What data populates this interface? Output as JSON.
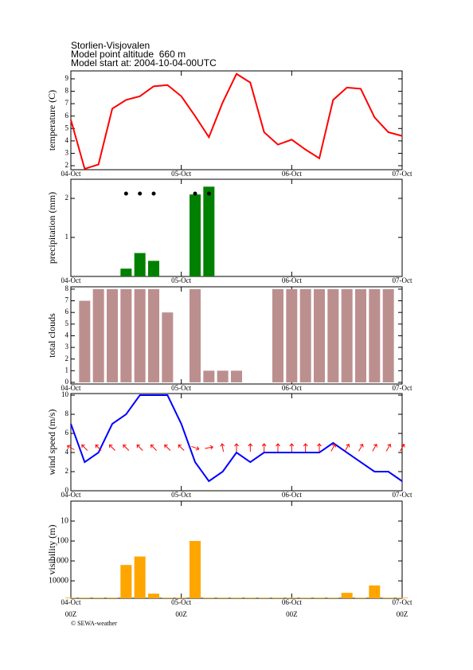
{
  "header": {
    "title": "Storlien-Visjovalen",
    "altitude": "Model point altitude  660 m",
    "model_start": "Model start at: 2004-10-04-00UTC"
  },
  "footer": "© SEWA-weather",
  "chart_data": [
    {
      "type": "line",
      "ylabel": "temperature (C)",
      "color": "#ff0000",
      "x": [
        0,
        3,
        6,
        9,
        12,
        15,
        18,
        21,
        24,
        27,
        30,
        33,
        36,
        39,
        42,
        45,
        48,
        51,
        54,
        57,
        60,
        63,
        66,
        69,
        72
      ],
      "values": [
        5.7,
        1.75,
        2.1,
        6.6,
        7.3,
        7.6,
        8.4,
        8.5,
        7.6,
        6.0,
        4.3,
        7.1,
        9.4,
        8.7,
        4.7,
        3.7,
        4.1,
        3.3,
        2.6,
        7.3,
        8.3,
        8.2,
        5.9,
        4.7,
        4.4
      ],
      "xlim": [
        0,
        72
      ],
      "xticks": [
        {
          "value": 0,
          "label": "04-Oct"
        },
        {
          "value": 24,
          "label": "05-Oct"
        },
        {
          "value": 48,
          "label": "06-Oct"
        },
        {
          "value": 72,
          "label": "07-Oct"
        }
      ],
      "ylim": [
        1.68,
        9.64
      ],
      "yticks": [
        2,
        3,
        4,
        5,
        6,
        7,
        8,
        9
      ]
    },
    {
      "type": "bar",
      "ylabel": "precipitation (mm)",
      "color": "#008000",
      "markers": true,
      "x": [
        12,
        15,
        18,
        27,
        30
      ],
      "values": [
        0.2,
        0.6,
        0.4,
        2.1,
        2.3
      ],
      "xlim": [
        0,
        72
      ],
      "xticks": [
        {
          "value": 0,
          "label": "04-Oct"
        },
        {
          "value": 24,
          "label": "05-Oct"
        },
        {
          "value": 48,
          "label": "06-Oct"
        },
        {
          "value": 72,
          "label": "07-Oct"
        }
      ],
      "ylim": [
        0,
        2.49
      ],
      "yticks": [
        1,
        2
      ]
    },
    {
      "type": "bar",
      "ylabel": "total clouds",
      "color": "#bc8f8f",
      "x": [
        3,
        6,
        9,
        12,
        15,
        18,
        21,
        24,
        27,
        30,
        33,
        36,
        39,
        42,
        45,
        48,
        51,
        54,
        57,
        60,
        63,
        66,
        69
      ],
      "values": [
        7,
        8,
        8,
        8,
        8,
        8,
        6,
        0,
        8,
        1,
        1,
        1,
        0,
        0,
        8,
        8,
        8,
        8,
        8,
        8,
        8,
        8,
        8
      ],
      "xlim": [
        0,
        72
      ],
      "xticks": [
        {
          "value": 0,
          "label": "04-Oct"
        },
        {
          "value": 24,
          "label": "05-Oct"
        },
        {
          "value": 48,
          "label": "06-Oct"
        },
        {
          "value": 72,
          "label": "07-Oct"
        }
      ],
      "ylim": [
        -0.14,
        8.2
      ],
      "yticks": [
        0,
        1,
        2,
        3,
        4,
        5,
        6,
        7,
        8
      ]
    },
    {
      "type": "line",
      "ylabel": "wind speed (m/s)",
      "color": "#0000ff",
      "arrow_color": "#ff0000",
      "x": [
        0,
        3,
        6,
        9,
        12,
        15,
        18,
        21,
        24,
        27,
        30,
        33,
        36,
        39,
        42,
        45,
        48,
        51,
        54,
        57,
        60,
        63,
        66,
        69,
        72
      ],
      "values": [
        7,
        3,
        4,
        7,
        8,
        10,
        10,
        10,
        7,
        3,
        1,
        2,
        4,
        3,
        4,
        4,
        4,
        4,
        4,
        5,
        4,
        3,
        2,
        2,
        1
      ],
      "directions": [
        300,
        315,
        315,
        315,
        315,
        315,
        315,
        315,
        315,
        110,
        80,
        350,
        0,
        0,
        0,
        0,
        0,
        0,
        0,
        30,
        30,
        30,
        30,
        30,
        30
      ],
      "xlim": [
        0,
        72
      ],
      "xticks": [
        {
          "value": 0,
          "label": "04-Oct"
        },
        {
          "value": 24,
          "label": "05-Oct"
        },
        {
          "value": 48,
          "label": "06-Oct"
        },
        {
          "value": 72,
          "label": "07-Oct"
        }
      ],
      "ylim": [
        0,
        10.17
      ],
      "yticks": [
        0,
        2,
        4,
        6,
        8,
        10
      ]
    },
    {
      "type": "bar",
      "ylabel": "visibility (m)",
      "color": "#ffa500",
      "log": true,
      "inverted": true,
      "x": [
        0,
        3,
        6,
        9,
        12,
        15,
        18,
        21,
        24,
        27,
        30,
        33,
        36,
        39,
        42,
        45,
        48,
        51,
        54,
        57,
        60,
        63,
        66,
        69,
        72
      ],
      "values": [
        70000,
        70000,
        70000,
        70000,
        1600,
        600,
        44000,
        70000,
        70000,
        100,
        70000,
        70000,
        70000,
        70000,
        70000,
        70000,
        70000,
        70000,
        70000,
        70000,
        40000,
        70000,
        17000,
        70000,
        70000
      ],
      "xlim": [
        0,
        72
      ],
      "xticks": [
        {
          "value": 0,
          "label": "04-Oct"
        },
        {
          "value": 24,
          "label": "05-Oct"
        },
        {
          "value": 48,
          "label": "06-Oct"
        },
        {
          "value": 72,
          "label": "07-Oct"
        }
      ],
      "xtick_sublabels": [
        "00Z",
        "00Z",
        "00Z",
        "00Z"
      ],
      "ylim": [
        1,
        75000
      ],
      "yticks": [
        10,
        100,
        1000,
        10000
      ]
    }
  ]
}
